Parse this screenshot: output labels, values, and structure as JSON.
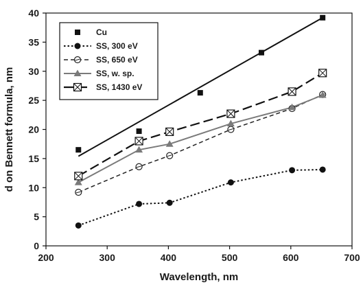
{
  "chart_data": {
    "type": "line",
    "xlabel": "Wavelength, nm",
    "ylabel": "d on Bennett formula, nm",
    "xlim": [
      200,
      700
    ],
    "ylim": [
      0,
      40
    ],
    "xticks": [
      200,
      300,
      400,
      500,
      600,
      700
    ],
    "yticks": [
      0,
      5,
      10,
      15,
      20,
      25,
      30,
      35,
      40
    ],
    "grid": "none",
    "legend_position": "top-left",
    "series": [
      {
        "name": "Cu",
        "marker": "filled-square",
        "line": "none",
        "color": "#111111",
        "points": [
          [
            253,
            16.5
          ],
          [
            352,
            19.7
          ],
          [
            452,
            26.3
          ],
          [
            552,
            33.2
          ],
          [
            652,
            39.2
          ]
        ]
      },
      {
        "name": "SS, 300 eV",
        "marker": "filled-circle",
        "line": "dotted",
        "color": "#111111",
        "points": [
          [
            253,
            3.5
          ],
          [
            352,
            7.2
          ],
          [
            402,
            7.4
          ],
          [
            502,
            10.9
          ],
          [
            602,
            13.0
          ],
          [
            652,
            13.1
          ]
        ]
      },
      {
        "name": "SS, 650 eV",
        "marker": "open-circle-slash",
        "line": "dashed",
        "color": "#222222",
        "points": [
          [
            253,
            9.2
          ],
          [
            352,
            13.6
          ],
          [
            402,
            15.5
          ],
          [
            502,
            20.0
          ],
          [
            602,
            23.6
          ],
          [
            652,
            26.0
          ]
        ]
      },
      {
        "name": "SS, w. sp.",
        "marker": "triangle",
        "line": "solid",
        "color": "#7a7a7a",
        "points": [
          [
            253,
            10.9
          ],
          [
            352,
            16.5
          ],
          [
            402,
            17.5
          ],
          [
            502,
            21.0
          ],
          [
            602,
            23.8
          ],
          [
            652,
            25.9
          ]
        ]
      },
      {
        "name": "SS, 1430 eV",
        "marker": "boxed-x",
        "line": "long-dash",
        "color": "#111111",
        "points": [
          [
            253,
            12.0
          ],
          [
            352,
            18.0
          ],
          [
            402,
            19.6
          ],
          [
            502,
            22.7
          ],
          [
            602,
            26.5
          ],
          [
            652,
            29.7
          ]
        ]
      }
    ],
    "fit_line": {
      "series": "Cu",
      "style": "solid",
      "color": "#111111",
      "points": [
        [
          253,
          15.4
        ],
        [
          652,
          39.2
        ]
      ]
    }
  }
}
